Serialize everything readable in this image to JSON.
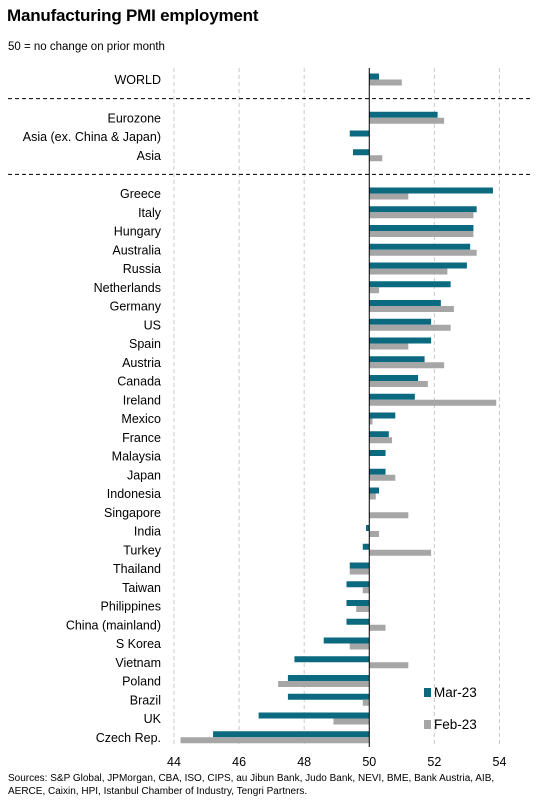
{
  "chart_data": {
    "type": "bar",
    "orientation": "horizontal",
    "title": "Manufacturing PMI employment",
    "subtitle": "50 = no change on prior month",
    "baseline": 50,
    "xlim": [
      44,
      55
    ],
    "xticks": [
      44,
      46,
      48,
      50,
      52,
      54
    ],
    "grid": true,
    "legend_position": "bottom-right",
    "categories": [
      "WORLD",
      "Eurozone",
      "Asia (ex. China & Japan)",
      "Asia",
      "Greece",
      "Italy",
      "Hungary",
      "Australia",
      "Russia",
      "Netherlands",
      "Germany",
      "US",
      "Spain",
      "Austria",
      "Canada",
      "Ireland",
      "Mexico",
      "France",
      "Malaysia",
      "Japan",
      "Indonesia",
      "Singapore",
      "India",
      "Turkey",
      "Thailand",
      "Taiwan",
      "Philippines",
      "China (mainland)",
      "S Korea",
      "Vietnam",
      "Poland",
      "Brazil",
      "UK",
      "Czech Rep."
    ],
    "separators_after": [
      "WORLD",
      "Asia"
    ],
    "series": [
      {
        "name": "Mar-23",
        "color": "#0b6a80",
        "values": [
          50.3,
          52.1,
          49.4,
          49.5,
          53.8,
          53.3,
          53.2,
          53.1,
          53.0,
          52.5,
          52.2,
          51.9,
          51.9,
          51.7,
          51.5,
          51.4,
          50.8,
          50.6,
          50.5,
          50.5,
          50.3,
          50.0,
          49.9,
          49.8,
          49.4,
          49.3,
          49.3,
          49.3,
          48.6,
          47.7,
          47.5,
          47.5,
          46.6,
          45.2
        ]
      },
      {
        "name": "Feb-23",
        "color": "#a6a6a6",
        "values": [
          51.0,
          52.3,
          50.0,
          50.4,
          51.2,
          53.2,
          53.2,
          53.3,
          52.4,
          50.3,
          52.6,
          52.5,
          51.2,
          52.3,
          51.8,
          53.9,
          50.1,
          50.7,
          50.0,
          50.8,
          50.2,
          51.2,
          50.3,
          51.9,
          49.4,
          49.8,
          49.6,
          50.5,
          49.4,
          51.2,
          47.2,
          49.8,
          48.9,
          44.2
        ]
      }
    ]
  },
  "source_text": "Sources: S&P Global, JPMorgan, CBA, ISO, CIPS, au Jibun Bank, Judo Bank, NEVI, BME, Bank Austria, AIB, AERCE, Caixin, HPI, Istanbul Chamber of Industry, Tengri Partners."
}
